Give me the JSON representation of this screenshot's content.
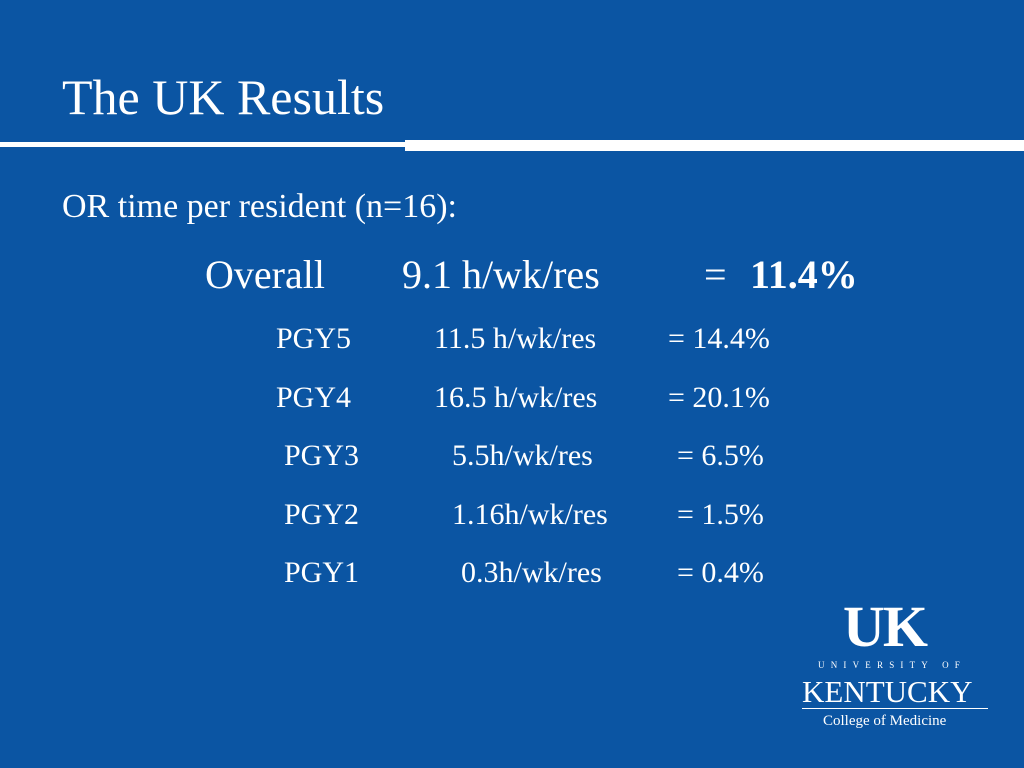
{
  "header": {
    "title": "The UK Results"
  },
  "subtitle": "OR time per resident (n=16):",
  "overall": {
    "label": "Overall",
    "rate": "9.1 h/wk/res",
    "equals": "=",
    "percent": "11.4%"
  },
  "rows": [
    {
      "label": "PGY5",
      "rate": "11.5 h/wk/res",
      "percent": "= 14.4%"
    },
    {
      "label": "PGY4",
      "rate": "16.5 h/wk/res",
      "percent": "= 20.1%"
    },
    {
      "label": "PGY3",
      "rate": "5.5h/wk/res",
      "percent": "= 6.5%"
    },
    {
      "label": "PGY2",
      "rate": "1.16h/wk/res",
      "percent": "= 1.5%"
    },
    {
      "label": "PGY1",
      "rate": "0.3h/wk/res",
      "percent": "= 0.4%"
    }
  ],
  "logo": {
    "mark": "UK",
    "line1": "UNIVERSITY OF",
    "line2": "KENTUCKY",
    "line3": "College of Medicine"
  }
}
